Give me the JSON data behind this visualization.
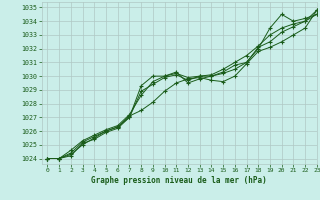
{
  "title": "Graphe pression niveau de la mer (hPa)",
  "bg_color": "#caeee9",
  "grid_color": "#b0c8c4",
  "line_color": "#1a5c1a",
  "xlim": [
    -0.5,
    23
  ],
  "ylim": [
    1023.6,
    1035.4
  ],
  "xticks": [
    0,
    1,
    2,
    3,
    4,
    5,
    6,
    7,
    8,
    9,
    10,
    11,
    12,
    13,
    14,
    15,
    16,
    17,
    18,
    19,
    20,
    21,
    22,
    23
  ],
  "yticks": [
    1024,
    1025,
    1026,
    1027,
    1028,
    1029,
    1030,
    1031,
    1032,
    1033,
    1034,
    1035
  ],
  "series": [
    [
      1024.0,
      1024.0,
      1024.2,
      1025.1,
      1025.4,
      1025.9,
      1026.2,
      1027.0,
      1028.9,
      1029.4,
      1029.9,
      1030.1,
      1029.7,
      1030.0,
      1030.0,
      1030.2,
      1030.5,
      1031.0,
      1032.1,
      1032.5,
      1033.2,
      1033.6,
      1034.0,
      1034.8
    ],
    [
      1024.0,
      1024.0,
      1024.4,
      1025.2,
      1025.6,
      1026.0,
      1026.3,
      1027.1,
      1027.5,
      1028.1,
      1028.9,
      1029.5,
      1029.8,
      1029.9,
      1029.7,
      1029.6,
      1030.0,
      1030.9,
      1031.8,
      1032.1,
      1032.5,
      1033.0,
      1033.5,
      1034.8
    ],
    [
      1024.0,
      1024.0,
      1024.6,
      1025.3,
      1025.7,
      1026.1,
      1026.4,
      1027.2,
      1028.6,
      1029.6,
      1030.0,
      1030.2,
      1029.9,
      1030.0,
      1030.1,
      1030.5,
      1031.0,
      1031.5,
      1032.2,
      1033.0,
      1033.5,
      1033.8,
      1034.0,
      1034.5
    ],
    [
      1024.0,
      1024.0,
      1024.3,
      1025.0,
      1025.5,
      1026.0,
      1026.3,
      1027.0,
      1029.3,
      1030.0,
      1030.0,
      1030.3,
      1029.5,
      1029.8,
      1030.0,
      1030.3,
      1030.8,
      1031.0,
      1032.0,
      1033.5,
      1034.5,
      1034.0,
      1034.2,
      1034.5
    ]
  ]
}
